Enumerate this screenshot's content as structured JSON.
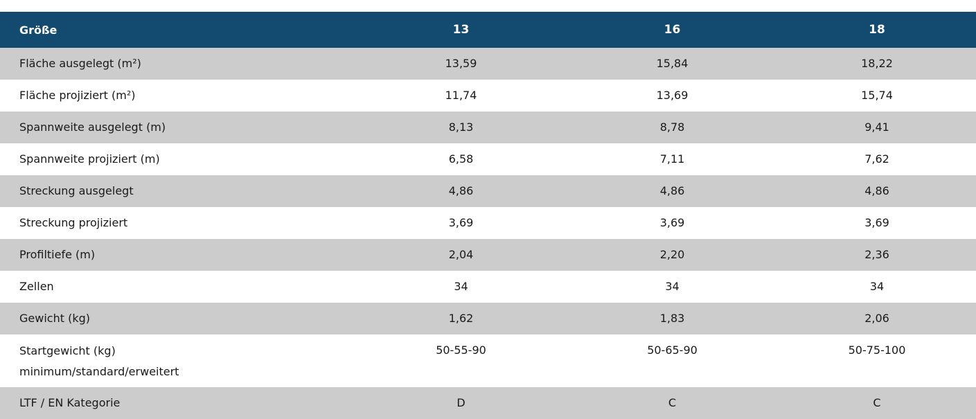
{
  "table": {
    "header": {
      "label": "Größe",
      "sizes": [
        "13",
        "16",
        "18"
      ]
    },
    "rows": [
      {
        "label": "Fläche ausgelegt (m²)",
        "values": [
          "13,59",
          "15,84",
          "18,22"
        ]
      },
      {
        "label": "Fläche projiziert (m²)",
        "values": [
          "11,74",
          "13,69",
          "15,74"
        ]
      },
      {
        "label": "Spannweite ausgelegt (m)",
        "values": [
          "8,13",
          "8,78",
          "9,41"
        ]
      },
      {
        "label": "Spannweite projiziert (m)",
        "values": [
          "6,58",
          "7,11",
          "7,62"
        ]
      },
      {
        "label": "Streckung ausgelegt",
        "values": [
          "4,86",
          "4,86",
          "4,86"
        ]
      },
      {
        "label": "Streckung projiziert",
        "values": [
          "3,69",
          "3,69",
          "3,69"
        ]
      },
      {
        "label": "Profiltiefe (m)",
        "values": [
          "2,04",
          "2,20",
          "2,36"
        ]
      },
      {
        "label": "Zellen",
        "values": [
          "34",
          "34",
          "34"
        ]
      },
      {
        "label": "Gewicht (kg)",
        "values": [
          "1,62",
          "1,83",
          "2,06"
        ]
      },
      {
        "label": "Startgewicht (kg)",
        "sublabel": "minimum/standard/erweitert",
        "values": [
          "50-55-90",
          "50-65-90",
          "50-75-100"
        ]
      },
      {
        "label": "LTF / EN Kategorie",
        "values": [
          "D",
          "C",
          "C"
        ]
      }
    ]
  },
  "colors": {
    "header_bg": "#124a70",
    "header_text": "#ffffff",
    "stripe": "#cccccc"
  }
}
